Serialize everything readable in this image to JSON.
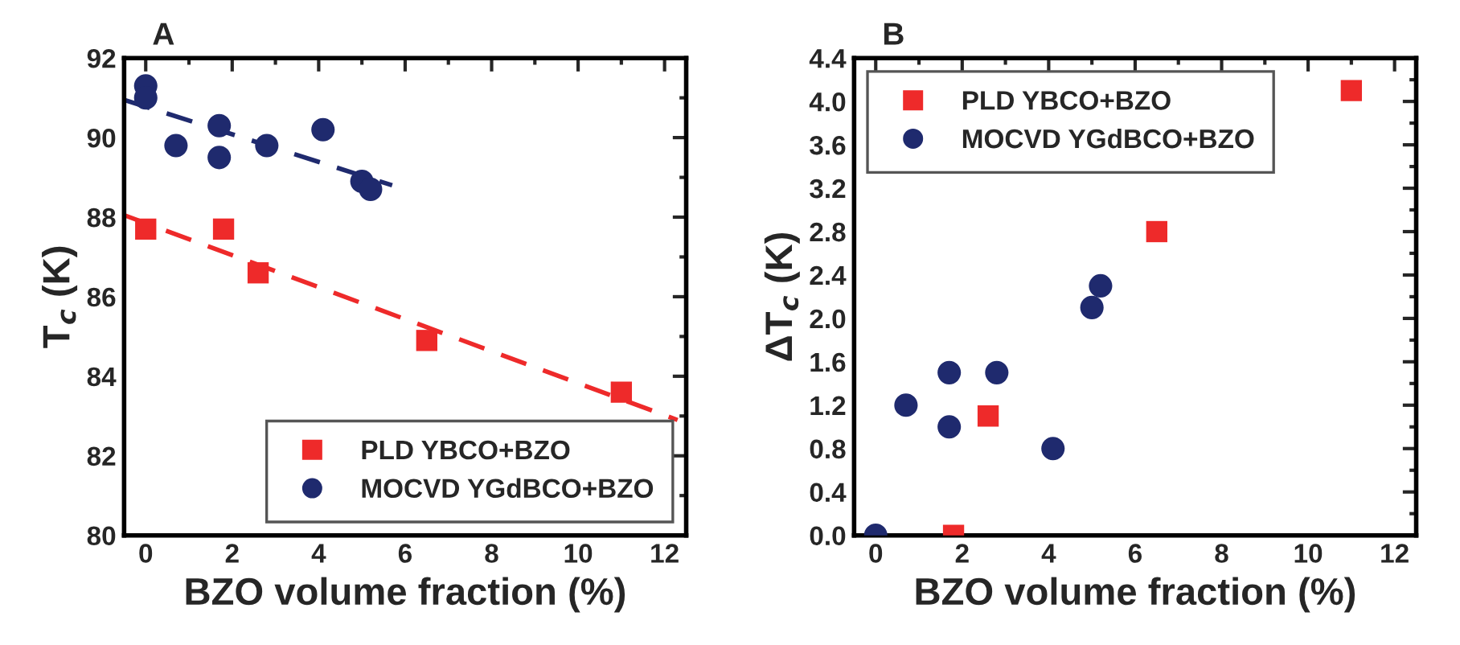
{
  "chart_data": [
    {
      "type": "scatter",
      "title": "A",
      "xlabel": "BZO volume fraction (%)",
      "ylabel": "T$_{c}$ (K)",
      "xlim": [
        -0.5,
        12.5
      ],
      "ylim": [
        80,
        92
      ],
      "xticks": [
        0,
        2,
        4,
        6,
        8,
        10,
        12
      ],
      "yticks": [
        80,
        82,
        84,
        86,
        88,
        90,
        92
      ],
      "grid": false,
      "legend": "bottom right",
      "series": [
        {
          "name": "PLD YBCO+BZO",
          "marker": "square",
          "color": "#ee2a2a",
          "x": [
            0,
            1.8,
            2.6,
            6.5,
            11
          ],
          "values": [
            87.7,
            87.7,
            86.6,
            84.9,
            83.6
          ]
        },
        {
          "name": "MOCVD YGdBCO+BZO",
          "marker": "circle",
          "color": "#1f2a6e",
          "x": [
            0,
            0,
            0.7,
            1.7,
            1.7,
            2.8,
            4.1,
            5.0,
            5.2
          ],
          "values": [
            91.3,
            91.0,
            89.8,
            90.3,
            89.5,
            89.8,
            90.2,
            88.9,
            88.7
          ]
        },
        {
          "type": "line",
          "line_style": "dashed",
          "color": "#ee2a2a",
          "x": [
            -0.5,
            12.3
          ],
          "values": [
            88.05,
            82.9
          ]
        },
        {
          "type": "line",
          "line_style": "dashed",
          "color": "#1f2a6e",
          "x": [
            -0.5,
            5.7
          ],
          "values": [
            90.95,
            88.8
          ]
        }
      ]
    },
    {
      "type": "scatter",
      "title": "B",
      "xlabel": "BZO volume fraction (%)",
      "ylabel": "ΔT$_{c}$ (K)",
      "xlim": [
        -0.5,
        12.5
      ],
      "ylim": [
        0,
        4.4
      ],
      "xticks": [
        0,
        2,
        4,
        6,
        8,
        10,
        12
      ],
      "yticks": [
        {
          "value": 0,
          "label": "0.0"
        },
        0.4,
        0.8,
        1.2,
        1.6,
        {
          "value": 2,
          "label": "2.0"
        },
        2.4,
        2.8,
        3.2,
        3.6,
        {
          "value": 4,
          "label": "4.0"
        },
        4.4
      ],
      "grid": false,
      "legend": "top left",
      "series": [
        {
          "name": "PLD YBCO+BZO",
          "marker": "square",
          "color": "#ee2a2a",
          "x": [
            1.8,
            2.6,
            6.5,
            11
          ],
          "values": [
            0.0,
            1.1,
            2.8,
            4.1
          ]
        },
        {
          "name": "MOCVD YGdBCO+BZO",
          "marker": "circle",
          "color": "#1f2a6e",
          "x": [
            0,
            0.7,
            1.7,
            1.7,
            2.8,
            4.1,
            5.0,
            5.2
          ],
          "values": [
            0.0,
            1.2,
            1.5,
            1.0,
            1.5,
            0.8,
            2.1,
            2.3
          ]
        }
      ]
    }
  ]
}
